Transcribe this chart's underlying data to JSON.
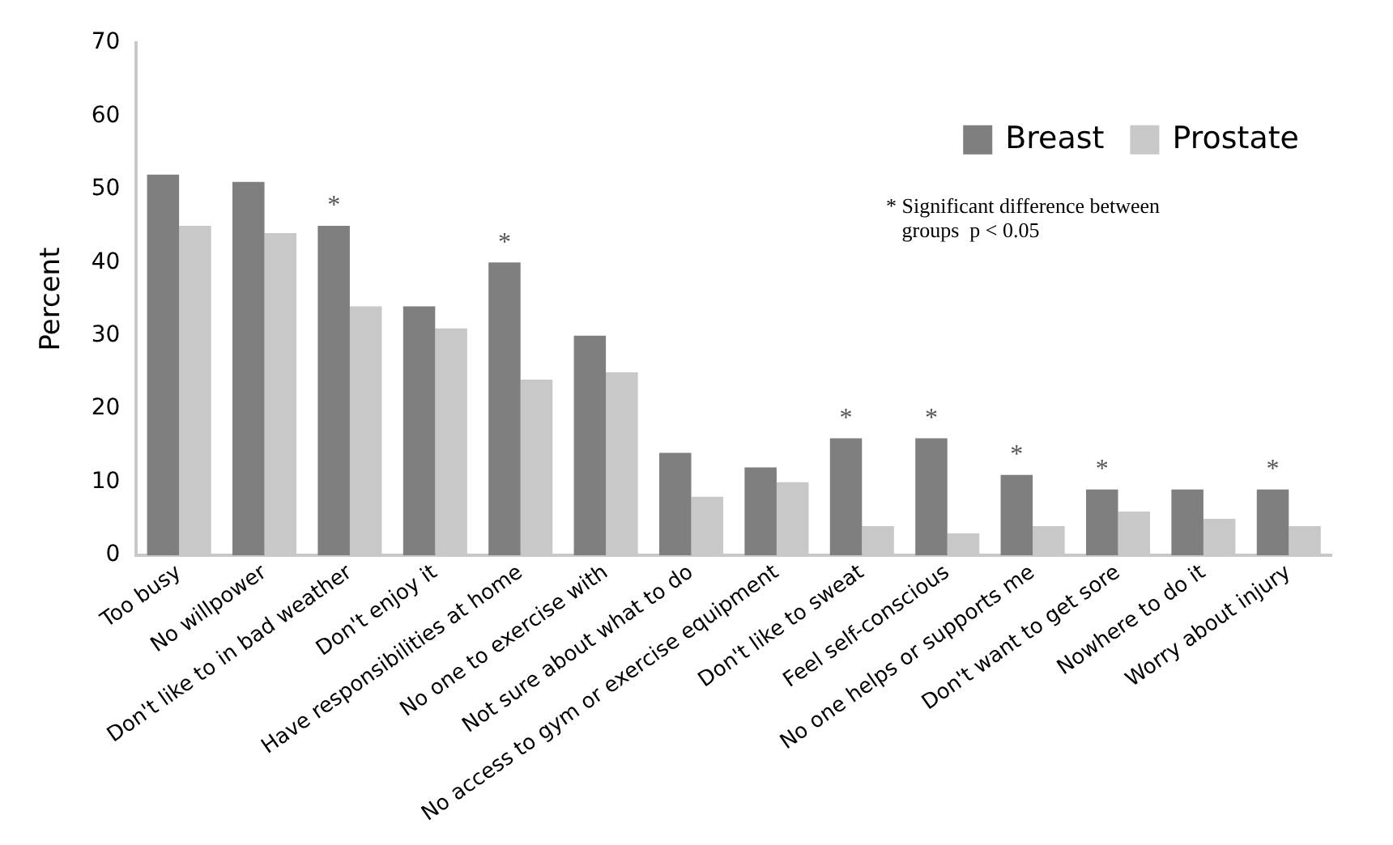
{
  "chart_data": {
    "type": "bar",
    "ylabel": "Percent",
    "categories": [
      "Too busy",
      "No willpower",
      "Don't like to in bad weather",
      "Don't enjoy it",
      "Have responsibilities at home",
      "No one to exercise with",
      "Not sure about what to do",
      "No access to gym or exercise equipment",
      "Don't like to sweat",
      "Feel self-conscious",
      "No one helps or supports me",
      "Don't want to get sore",
      "Nowhere to do it",
      "Worry about injury"
    ],
    "series": [
      {
        "name": "Breast",
        "color": "#7f7f7f",
        "values": [
          52,
          51,
          45,
          34,
          40,
          30,
          14,
          12,
          16,
          16,
          11,
          9,
          9,
          9
        ]
      },
      {
        "name": "Prostate",
        "color": "#c8c8c8",
        "values": [
          45,
          44,
          34,
          31,
          24,
          25,
          8,
          10,
          4,
          3,
          4,
          6,
          5,
          4
        ]
      }
    ],
    "ylim": [
      0,
      70
    ],
    "yticks": [
      0,
      10,
      20,
      30,
      40,
      50,
      60,
      70
    ],
    "grid": false,
    "legend": "top right",
    "annotations": [
      {
        "text": "*",
        "x": "Don't like to in bad weather",
        "y": 45
      },
      {
        "text": "*",
        "x": "Have responsibilities at home",
        "y": 40
      },
      {
        "text": "*",
        "x": "Don't like to sweat",
        "y": 16
      },
      {
        "text": "*",
        "x": "Feel self-conscious",
        "y": 16
      },
      {
        "text": "*",
        "x": "No one helps or supports me",
        "y": 11
      },
      {
        "text": "*",
        "x": "Don't want to get sore",
        "y": 9
      },
      {
        "text": "*",
        "x": "Worry about injury",
        "y": 9
      },
      "* Significant difference between\n   groups  p < 0.05"
    ]
  }
}
